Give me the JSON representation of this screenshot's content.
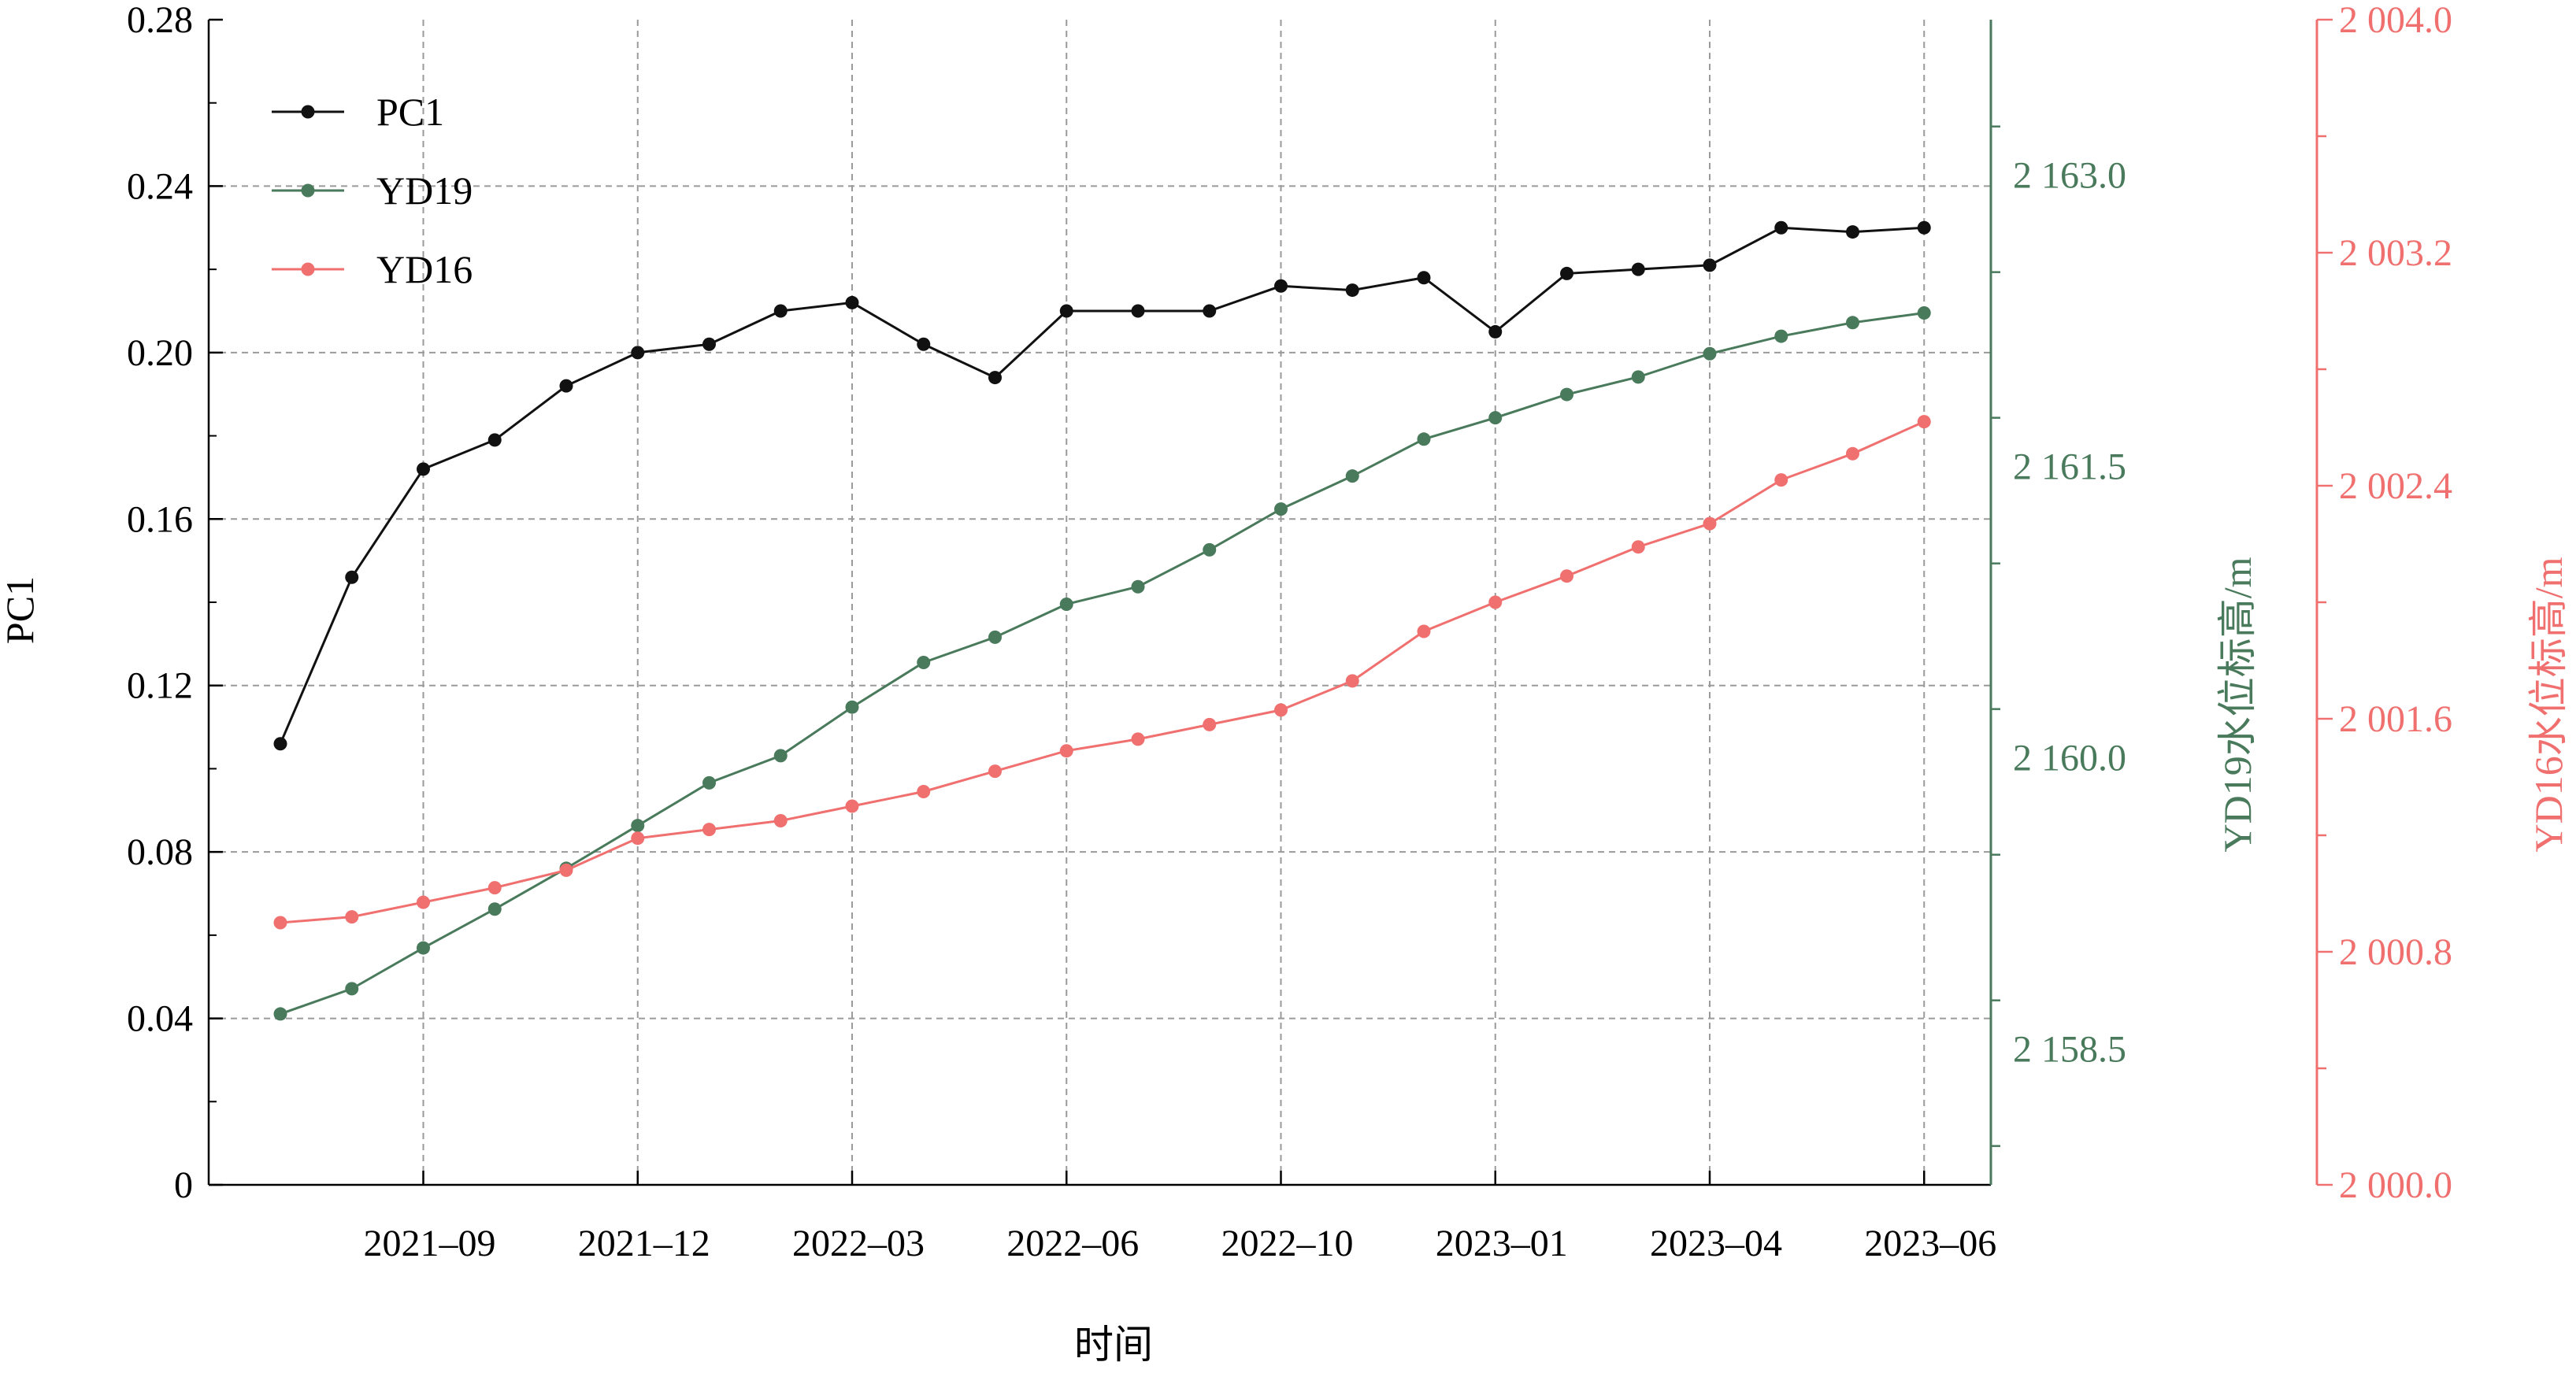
{
  "chart_data": {
    "type": "line",
    "x_labels": [
      "2021–09",
      "2021–12",
      "2022–03",
      "2022–06",
      "2022–10",
      "2023–01",
      "2023–04",
      "2023–06"
    ],
    "xlabel": "时间",
    "left_axis": {
      "label": "PC1",
      "ylim": [
        0,
        0.28
      ],
      "ticks": [
        "0",
        "0.04",
        "0.08",
        "0.12",
        "0.16",
        "0.20",
        "0.24",
        "0.28"
      ],
      "color": "#000000"
    },
    "right_axis_1": {
      "label": "YD19水位标高/m",
      "ylim": [
        2157.8,
        2163.8
      ],
      "ticks": [
        "2 158.5",
        "2 160.0",
        "2 161.5",
        "2 163.0"
      ],
      "color": "#4a7a5c"
    },
    "right_axis_2": {
      "label": "YD16水位标高/m",
      "ylim": [
        2000.0,
        2004.0
      ],
      "ticks": [
        "2 000.0",
        "2 000.8",
        "2 001.6",
        "2 002.4",
        "2 003.2",
        "2 004.0"
      ],
      "color": "#f07070"
    },
    "grid": true,
    "legend_position": "top-left",
    "series": [
      {
        "name": "PC1",
        "axis": "left",
        "color": "#111111",
        "values": [
          0.106,
          0.146,
          0.172,
          0.179,
          0.192,
          0.2,
          0.202,
          0.21,
          0.212,
          0.202,
          0.194,
          0.21,
          0.21,
          0.21,
          0.216,
          0.215,
          0.218,
          0.205,
          0.219,
          0.22,
          0.221,
          0.23,
          0.229,
          0.23
        ]
      },
      {
        "name": "YD19",
        "axis": "right1",
        "color": "#4a7a5c",
        "values": [
          2158.68,
          2158.81,
          2159.02,
          2159.22,
          2159.43,
          2159.65,
          2159.87,
          2160.01,
          2160.26,
          2160.49,
          2160.62,
          2160.79,
          2160.88,
          2161.07,
          2161.28,
          2161.45,
          2161.64,
          2161.75,
          2161.87,
          2161.96,
          2162.08,
          2162.17,
          2162.24,
          2162.29
        ]
      },
      {
        "name": "YD16",
        "axis": "right2",
        "color": "#f07070",
        "values": [
          2000.9,
          2000.92,
          2000.97,
          2001.02,
          2001.08,
          2001.19,
          2001.22,
          2001.25,
          2001.3,
          2001.35,
          2001.42,
          2001.49,
          2001.53,
          2001.58,
          2001.63,
          2001.73,
          2001.9,
          2002.0,
          2002.09,
          2002.19,
          2002.27,
          2002.42,
          2002.51,
          2002.62
        ]
      }
    ]
  }
}
